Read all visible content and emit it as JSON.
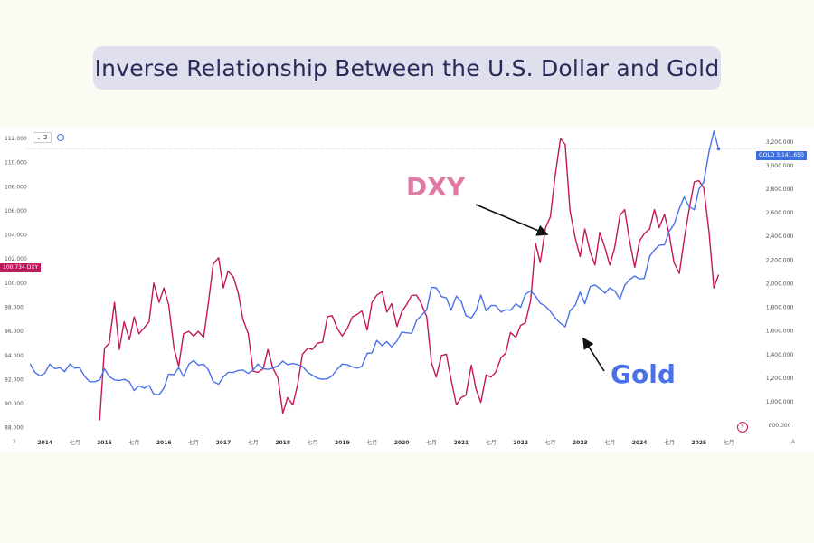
{
  "title": "Inverse Relationship Between the U.S. Dollar and Gold",
  "toolbar": {
    "interval": "⌄ 2"
  },
  "tags": {
    "dxy_value": "100.734",
    "dxy_symbol": "DXY",
    "gold_symbol": "GOLD",
    "gold_value": "3,141.650"
  },
  "annotations": {
    "dxy": "DXY",
    "gold": "Gold"
  },
  "corner_left": "2",
  "corner_right": "A",
  "colors": {
    "dxy": "#c2185b",
    "gold": "#4a72e8",
    "dxy_annot": "#e07aa4"
  },
  "chart_data": {
    "type": "line",
    "title": "Inverse Relationship Between the U.S. Dollar and Gold",
    "x_tick_labels": [
      "2014",
      "七月",
      "2015",
      "七月",
      "2016",
      "七月",
      "2017",
      "七月",
      "2018",
      "七月",
      "2019",
      "七月",
      "2020",
      "七月",
      "2021",
      "七月",
      "2022",
      "七月",
      "2023",
      "七月",
      "2024",
      "七月",
      "2025",
      "七月"
    ],
    "left_axis": {
      "series": "DXY",
      "ticks": [
        "112.000",
        "110.000",
        "108.000",
        "106.000",
        "104.000",
        "102.000",
        "100.000",
        "98.000",
        "96.000",
        "94.000",
        "92.000",
        "90.000",
        "88.000"
      ],
      "ylim": [
        87.6,
        112.6
      ]
    },
    "right_axis": {
      "series": "GOLD",
      "ticks": [
        "3,200.000",
        "3,000.000",
        "2,800.000",
        "2,600.000",
        "2,400.000",
        "2,200.000",
        "2,000.000",
        "1,800.000",
        "1,600.000",
        "1,400.000",
        "1,200.000",
        "1,000.000",
        "800.000"
      ],
      "ylim": [
        740,
        3290
      ]
    },
    "x_range": [
      2013.7,
      2025.9
    ],
    "series": [
      {
        "name": "DXY",
        "axis": "left",
        "color": "#c2185b",
        "points": [
          [
            2014.92,
            88.6
          ],
          [
            2015.0,
            94.6
          ],
          [
            2015.08,
            95.0
          ],
          [
            2015.17,
            98.4
          ],
          [
            2015.25,
            94.5
          ],
          [
            2015.33,
            96.8
          ],
          [
            2015.42,
            95.3
          ],
          [
            2015.5,
            97.2
          ],
          [
            2015.58,
            95.8
          ],
          [
            2015.67,
            96.3
          ],
          [
            2015.75,
            96.8
          ],
          [
            2015.83,
            100.0
          ],
          [
            2015.92,
            98.4
          ],
          [
            2016.0,
            99.6
          ],
          [
            2016.08,
            98.2
          ],
          [
            2016.17,
            94.6
          ],
          [
            2016.25,
            93.1
          ],
          [
            2016.33,
            95.8
          ],
          [
            2016.42,
            96.0
          ],
          [
            2016.5,
            95.6
          ],
          [
            2016.58,
            96.0
          ],
          [
            2016.67,
            95.5
          ],
          [
            2016.75,
            98.4
          ],
          [
            2016.83,
            101.6
          ],
          [
            2016.92,
            102.1
          ],
          [
            2017.0,
            99.6
          ],
          [
            2017.08,
            101.0
          ],
          [
            2017.17,
            100.5
          ],
          [
            2017.25,
            99.2
          ],
          [
            2017.33,
            97.0
          ],
          [
            2017.42,
            95.8
          ],
          [
            2017.5,
            92.7
          ],
          [
            2017.58,
            92.6
          ],
          [
            2017.67,
            92.9
          ],
          [
            2017.75,
            94.5
          ],
          [
            2017.83,
            93.0
          ],
          [
            2017.92,
            92.1
          ],
          [
            2018.0,
            89.2
          ],
          [
            2018.08,
            90.5
          ],
          [
            2018.17,
            89.9
          ],
          [
            2018.25,
            91.6
          ],
          [
            2018.33,
            94.1
          ],
          [
            2018.42,
            94.6
          ],
          [
            2018.5,
            94.5
          ],
          [
            2018.58,
            95.0
          ],
          [
            2018.67,
            95.1
          ],
          [
            2018.75,
            97.2
          ],
          [
            2018.83,
            97.3
          ],
          [
            2018.92,
            96.2
          ],
          [
            2019.0,
            95.6
          ],
          [
            2019.08,
            96.2
          ],
          [
            2019.17,
            97.2
          ],
          [
            2019.25,
            97.4
          ],
          [
            2019.33,
            97.7
          ],
          [
            2019.42,
            96.1
          ],
          [
            2019.5,
            98.4
          ],
          [
            2019.58,
            99.0
          ],
          [
            2019.67,
            99.3
          ],
          [
            2019.75,
            97.6
          ],
          [
            2019.83,
            98.3
          ],
          [
            2019.92,
            96.4
          ],
          [
            2020.0,
            97.6
          ],
          [
            2020.08,
            98.2
          ],
          [
            2020.17,
            99.0
          ],
          [
            2020.25,
            99.0
          ],
          [
            2020.33,
            98.3
          ],
          [
            2020.42,
            97.2
          ],
          [
            2020.5,
            93.4
          ],
          [
            2020.58,
            92.2
          ],
          [
            2020.67,
            94.0
          ],
          [
            2020.75,
            94.1
          ],
          [
            2020.83,
            92.0
          ],
          [
            2020.92,
            89.9
          ],
          [
            2021.0,
            90.5
          ],
          [
            2021.08,
            90.7
          ],
          [
            2021.17,
            93.2
          ],
          [
            2021.25,
            91.2
          ],
          [
            2021.33,
            90.1
          ],
          [
            2021.42,
            92.4
          ],
          [
            2021.5,
            92.2
          ],
          [
            2021.58,
            92.6
          ],
          [
            2021.67,
            93.8
          ],
          [
            2021.75,
            94.2
          ],
          [
            2021.83,
            95.9
          ],
          [
            2021.92,
            95.5
          ],
          [
            2022.0,
            96.5
          ],
          [
            2022.08,
            96.7
          ],
          [
            2022.17,
            98.6
          ],
          [
            2022.25,
            103.3
          ],
          [
            2022.33,
            101.7
          ],
          [
            2022.42,
            104.6
          ],
          [
            2022.5,
            105.5
          ],
          [
            2022.58,
            108.9
          ],
          [
            2022.67,
            112.0
          ],
          [
            2022.75,
            111.5
          ],
          [
            2022.83,
            106.0
          ],
          [
            2022.92,
            103.7
          ],
          [
            2023.0,
            102.2
          ],
          [
            2023.08,
            104.5
          ],
          [
            2023.17,
            102.6
          ],
          [
            2023.25,
            101.5
          ],
          [
            2023.33,
            104.2
          ],
          [
            2023.42,
            102.9
          ],
          [
            2023.5,
            101.5
          ],
          [
            2023.58,
            102.9
          ],
          [
            2023.67,
            105.6
          ],
          [
            2023.75,
            106.1
          ],
          [
            2023.83,
            103.6
          ],
          [
            2023.92,
            101.3
          ],
          [
            2024.0,
            103.5
          ],
          [
            2024.08,
            104.1
          ],
          [
            2024.17,
            104.5
          ],
          [
            2024.25,
            106.1
          ],
          [
            2024.33,
            104.6
          ],
          [
            2024.42,
            105.7
          ],
          [
            2024.5,
            104.0
          ],
          [
            2024.58,
            101.7
          ],
          [
            2024.67,
            100.8
          ],
          [
            2024.75,
            103.6
          ],
          [
            2024.83,
            106.0
          ],
          [
            2024.92,
            108.4
          ],
          [
            2025.0,
            108.5
          ],
          [
            2025.08,
            107.9
          ],
          [
            2025.17,
            104.2
          ],
          [
            2025.25,
            99.6
          ],
          [
            2025.33,
            100.7
          ]
        ]
      },
      {
        "name": "GOLD",
        "axis": "right",
        "color": "#4a72e8",
        "points": [
          [
            2013.75,
            1322
          ],
          [
            2013.83,
            1250
          ],
          [
            2013.92,
            1220
          ],
          [
            2014.0,
            1245
          ],
          [
            2014.08,
            1320
          ],
          [
            2014.17,
            1280
          ],
          [
            2014.25,
            1290
          ],
          [
            2014.33,
            1255
          ],
          [
            2014.42,
            1320
          ],
          [
            2014.5,
            1285
          ],
          [
            2014.58,
            1290
          ],
          [
            2014.67,
            1215
          ],
          [
            2014.75,
            1170
          ],
          [
            2014.83,
            1170
          ],
          [
            2014.92,
            1185
          ],
          [
            2015.0,
            1280
          ],
          [
            2015.08,
            1215
          ],
          [
            2015.17,
            1185
          ],
          [
            2015.25,
            1180
          ],
          [
            2015.33,
            1190
          ],
          [
            2015.42,
            1170
          ],
          [
            2015.5,
            1095
          ],
          [
            2015.58,
            1135
          ],
          [
            2015.67,
            1115
          ],
          [
            2015.75,
            1140
          ],
          [
            2015.83,
            1065
          ],
          [
            2015.92,
            1060
          ],
          [
            2016.0,
            1115
          ],
          [
            2016.08,
            1235
          ],
          [
            2016.17,
            1230
          ],
          [
            2016.25,
            1290
          ],
          [
            2016.33,
            1215
          ],
          [
            2016.42,
            1320
          ],
          [
            2016.5,
            1350
          ],
          [
            2016.58,
            1310
          ],
          [
            2016.67,
            1320
          ],
          [
            2016.75,
            1270
          ],
          [
            2016.83,
            1170
          ],
          [
            2016.92,
            1150
          ],
          [
            2017.0,
            1210
          ],
          [
            2017.08,
            1250
          ],
          [
            2017.17,
            1250
          ],
          [
            2017.25,
            1265
          ],
          [
            2017.33,
            1270
          ],
          [
            2017.42,
            1240
          ],
          [
            2017.5,
            1270
          ],
          [
            2017.58,
            1320
          ],
          [
            2017.67,
            1280
          ],
          [
            2017.75,
            1275
          ],
          [
            2017.83,
            1285
          ],
          [
            2017.92,
            1305
          ],
          [
            2018.0,
            1345
          ],
          [
            2018.08,
            1315
          ],
          [
            2018.17,
            1325
          ],
          [
            2018.25,
            1315
          ],
          [
            2018.33,
            1300
          ],
          [
            2018.42,
            1250
          ],
          [
            2018.5,
            1225
          ],
          [
            2018.58,
            1200
          ],
          [
            2018.67,
            1190
          ],
          [
            2018.75,
            1195
          ],
          [
            2018.83,
            1220
          ],
          [
            2018.92,
            1280
          ],
          [
            2019.0,
            1320
          ],
          [
            2019.08,
            1315
          ],
          [
            2019.17,
            1295
          ],
          [
            2019.25,
            1285
          ],
          [
            2019.33,
            1300
          ],
          [
            2019.42,
            1410
          ],
          [
            2019.5,
            1415
          ],
          [
            2019.58,
            1520
          ],
          [
            2019.67,
            1475
          ],
          [
            2019.75,
            1510
          ],
          [
            2019.83,
            1465
          ],
          [
            2019.92,
            1515
          ],
          [
            2020.0,
            1590
          ],
          [
            2020.08,
            1585
          ],
          [
            2020.17,
            1580
          ],
          [
            2020.25,
            1690
          ],
          [
            2020.33,
            1730
          ],
          [
            2020.42,
            1780
          ],
          [
            2020.5,
            1970
          ],
          [
            2020.58,
            1965
          ],
          [
            2020.67,
            1890
          ],
          [
            2020.75,
            1880
          ],
          [
            2020.83,
            1775
          ],
          [
            2020.92,
            1895
          ],
          [
            2021.0,
            1850
          ],
          [
            2021.08,
            1730
          ],
          [
            2021.17,
            1710
          ],
          [
            2021.25,
            1770
          ],
          [
            2021.33,
            1905
          ],
          [
            2021.42,
            1770
          ],
          [
            2021.5,
            1815
          ],
          [
            2021.58,
            1815
          ],
          [
            2021.67,
            1760
          ],
          [
            2021.75,
            1780
          ],
          [
            2021.83,
            1775
          ],
          [
            2021.92,
            1830
          ],
          [
            2022.0,
            1800
          ],
          [
            2022.08,
            1910
          ],
          [
            2022.17,
            1940
          ],
          [
            2022.25,
            1895
          ],
          [
            2022.33,
            1835
          ],
          [
            2022.42,
            1810
          ],
          [
            2022.5,
            1765
          ],
          [
            2022.58,
            1710
          ],
          [
            2022.67,
            1665
          ],
          [
            2022.75,
            1635
          ],
          [
            2022.83,
            1770
          ],
          [
            2022.92,
            1820
          ],
          [
            2023.0,
            1930
          ],
          [
            2023.08,
            1830
          ],
          [
            2023.17,
            1975
          ],
          [
            2023.25,
            1990
          ],
          [
            2023.33,
            1960
          ],
          [
            2023.42,
            1920
          ],
          [
            2023.5,
            1965
          ],
          [
            2023.58,
            1940
          ],
          [
            2023.67,
            1870
          ],
          [
            2023.75,
            1985
          ],
          [
            2023.83,
            2035
          ],
          [
            2023.92,
            2065
          ],
          [
            2024.0,
            2040
          ],
          [
            2024.08,
            2045
          ],
          [
            2024.17,
            2230
          ],
          [
            2024.25,
            2285
          ],
          [
            2024.33,
            2325
          ],
          [
            2024.42,
            2330
          ],
          [
            2024.5,
            2445
          ],
          [
            2024.58,
            2500
          ],
          [
            2024.67,
            2635
          ],
          [
            2024.75,
            2735
          ],
          [
            2024.83,
            2655
          ],
          [
            2024.92,
            2625
          ],
          [
            2025.0,
            2800
          ],
          [
            2025.08,
            2860
          ],
          [
            2025.17,
            3120
          ],
          [
            2025.25,
            3290
          ],
          [
            2025.33,
            3141
          ]
        ]
      }
    ]
  }
}
